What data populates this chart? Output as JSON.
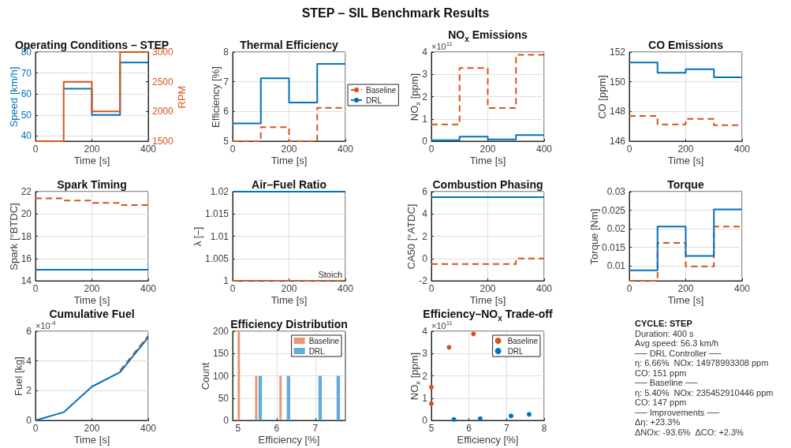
{
  "chart_data": [
    {
      "type": "other",
      "title": "STEP – SIL Benchmark Results"
    },
    {
      "type": "step",
      "title": "Operating Conditions – STEP",
      "xlabel": "Time [s]",
      "ylabel": "Speed [km/h]",
      "y2label": "RPM",
      "x": [
        0,
        100,
        200,
        300,
        400
      ],
      "series": [
        {
          "color": "#0072bd",
          "values": [
            null,
            62.5,
            50,
            75,
            75
          ]
        },
        {
          "color": "#d95319",
          "axis": "y2",
          "values": [
            1500,
            2500,
            2000,
            3000,
            3000
          ]
        }
      ],
      "xlim": [
        0,
        400
      ],
      "xticks": [
        0,
        200,
        400
      ],
      "ylim": [
        37.5,
        80
      ],
      "yticks": [
        40,
        50,
        60,
        70,
        80
      ],
      "y2lim": [
        1500,
        3000
      ],
      "y2ticks": [
        1500,
        2000,
        2500,
        3000
      ],
      "grid": true
    },
    {
      "type": "step",
      "title": "Thermal Efficiency",
      "xlabel": "Time [s]",
      "ylabel": "Efficiency [%]",
      "x": [
        0,
        100,
        200,
        300,
        400
      ],
      "series": [
        {
          "name": "Baseline",
          "color": "#d95319",
          "line_style": "dashed",
          "values": [
            5,
            5.47,
            5,
            6.12,
            6.12
          ]
        },
        {
          "name": "DRL",
          "color": "#0072bd",
          "values": [
            5.6,
            7.12,
            6.3,
            7.6,
            7.6
          ]
        }
      ],
      "xlim": [
        0,
        400
      ],
      "xticks": [
        0,
        200,
        400
      ],
      "ylim": [
        5,
        8
      ],
      "yticks": [
        5,
        6,
        7,
        8
      ],
      "grid": true,
      "legend": "right"
    },
    {
      "type": "step",
      "title": "NO$_{x}$ Emissions",
      "xlabel": "Time [s]",
      "ylabel": "NO$_{x}$ [ppm]",
      "annotations": [
        "×10$^{11}$"
      ],
      "x": [
        0,
        100,
        200,
        300,
        400
      ],
      "series": [
        {
          "color": "#d95319",
          "line_style": "dashed",
          "values": [
            0.75,
            3.28,
            1.49,
            3.88,
            3.88
          ]
        },
        {
          "color": "#0072bd",
          "values": [
            0.04,
            0.2,
            0.08,
            0.27,
            0.27
          ]
        }
      ],
      "xlim": [
        0,
        400
      ],
      "xticks": [
        0,
        200,
        400
      ],
      "ylim": [
        0,
        4
      ],
      "yticks": [
        0,
        1,
        2,
        3,
        4
      ],
      "grid": true
    },
    {
      "type": "step",
      "title": "CO Emissions",
      "xlabel": "Time [s]",
      "ylabel": "CO [ppm]",
      "x": [
        0,
        100,
        200,
        300,
        400
      ],
      "series": [
        {
          "color": "#d95319",
          "line_style": "dashed",
          "values": [
            147.7,
            147.13,
            147.5,
            147.07,
            147.07
          ]
        },
        {
          "color": "#0072bd",
          "values": [
            151.3,
            150.6,
            150.84,
            150.3,
            150.3
          ]
        }
      ],
      "xlim": [
        0,
        400
      ],
      "xticks": [
        0,
        200,
        400
      ],
      "ylim": [
        146,
        152
      ],
      "yticks": [
        146,
        148,
        150,
        152
      ],
      "grid": true
    },
    {
      "type": "step",
      "title": "Spark Timing",
      "xlabel": "Time [s]",
      "ylabel": "Spark [°BTDC]",
      "x": [
        0,
        100,
        200,
        300,
        400
      ],
      "series": [
        {
          "color": "#d95319",
          "line_style": "dashed",
          "values": [
            21.4,
            21.2,
            21,
            20.8,
            20.8
          ]
        },
        {
          "color": "#0072bd",
          "values": [
            15,
            15,
            15,
            15,
            15
          ]
        }
      ],
      "xlim": [
        0,
        400
      ],
      "xticks": [
        0,
        200,
        400
      ],
      "ylim": [
        14,
        22
      ],
      "yticks": [
        14,
        16,
        18,
        20,
        22
      ],
      "grid": true
    },
    {
      "type": "step",
      "title": "Air–Fuel Ratio",
      "xlabel": "Time [s]",
      "ylabel": "λ [–]",
      "annotations": [
        {
          "text": "Stoich",
          "x": 400,
          "y": 1
        }
      ],
      "x": [
        0,
        100,
        200,
        300,
        400
      ],
      "series": [
        {
          "color": "#d95319",
          "line_style": "dashed",
          "values": [
            1,
            1,
            1,
            1,
            1
          ]
        },
        {
          "color": "#0072bd",
          "values": [
            1.02,
            1.02,
            1.02,
            1.02,
            1.02
          ]
        }
      ],
      "xlim": [
        0,
        400
      ],
      "xticks": [
        0,
        200,
        400
      ],
      "ylim": [
        1,
        1.02
      ],
      "yticks": [
        1,
        1.005,
        1.01,
        1.015,
        1.02
      ],
      "grid": true
    },
    {
      "type": "step",
      "title": "Combustion Phasing",
      "xlabel": "Time [s]",
      "ylabel": "CA50 [°ATDC]",
      "x": [
        0,
        100,
        200,
        300,
        400
      ],
      "series": [
        {
          "color": "#d95319",
          "line_style": "dashed",
          "values": [
            -0.5,
            -0.5,
            -0.5,
            0,
            0
          ]
        },
        {
          "color": "#0072bd",
          "values": [
            5.5,
            5.5,
            5.5,
            5.5,
            5.5
          ]
        }
      ],
      "xlim": [
        0,
        400
      ],
      "xticks": [
        0,
        200,
        400
      ],
      "ylim": [
        -2,
        6
      ],
      "yticks": [
        -2,
        0,
        2,
        4,
        6
      ],
      "grid": true
    },
    {
      "type": "step",
      "title": "Torque",
      "xlabel": "Time [s]",
      "ylabel": "Torque [Nm]",
      "x": [
        0,
        100,
        200,
        300,
        400
      ],
      "series": [
        {
          "color": "#d95319",
          "line_style": "dashed",
          "values": [
            0.006,
            0.0162,
            0.0099,
            0.0206,
            0.0206
          ]
        },
        {
          "color": "#0072bd",
          "values": [
            0.0088,
            0.0206,
            0.0127,
            0.0252,
            0.0252
          ]
        }
      ],
      "xlim": [
        0,
        400
      ],
      "xticks": [
        0,
        200,
        400
      ],
      "ylim": [
        0.006,
        0.03
      ],
      "yticks": [
        0.01,
        0.015,
        0.02,
        0.025,
        0.03
      ],
      "grid": true
    },
    {
      "type": "line",
      "title": "Cumulative Fuel",
      "xlabel": "Time [s]",
      "ylabel": "Fuel [kg]",
      "annotations": [
        "×10$^{-4}$"
      ],
      "x": [
        0,
        100,
        200,
        300,
        400
      ],
      "series": [
        {
          "color": "#d95319",
          "line_style": "dashed",
          "values": [
            null,
            null,
            null,
            3.35,
            5.7
          ]
        },
        {
          "color": "#0072bd",
          "values": [
            0,
            0.55,
            2.27,
            3.25,
            5.6
          ]
        }
      ],
      "xlim": [
        0,
        400
      ],
      "xticks": [
        0,
        200,
        400
      ],
      "ylim": [
        0,
        6
      ],
      "yticks": [
        0,
        2,
        4,
        6
      ],
      "grid": true
    },
    {
      "type": "histogram",
      "title": "Efficiency Distribution",
      "xlabel": "Efficiency [%]",
      "ylabel": "Count",
      "bins": [
        4.99,
        5.05,
        5.44,
        5.5,
        5.53,
        5.62,
        6.07,
        6.13,
        6.26,
        6.35,
        7.08,
        7.17,
        7.55,
        7.64
      ],
      "series": [
        {
          "name": "Baseline",
          "color": "#e89875",
          "values": [
            200,
            0,
            100,
            0,
            0,
            0,
            100,
            0,
            0,
            0,
            0,
            0,
            0
          ]
        },
        {
          "name": "DRL",
          "color": "#66aad7",
          "values": [
            0,
            0,
            0,
            0,
            100,
            0,
            0,
            0,
            100,
            0,
            100,
            0,
            100
          ]
        }
      ],
      "xlim": [
        4.86,
        7.78
      ],
      "xticks": [
        5,
        6,
        7
      ],
      "ylim": [
        0,
        200
      ],
      "yticks": [
        0,
        50,
        100,
        150,
        200
      ],
      "grid": true,
      "legend": "top right"
    },
    {
      "type": "scatter",
      "title": "Efficiency–NO$_{x}$ Trade-off",
      "xlabel": "Efficiency [%]",
      "ylabel": "NO$_{x}$ [ppm]",
      "annotations": [
        "×10$^{11}$"
      ],
      "series": [
        {
          "name": "Baseline",
          "color": "#d95319",
          "x": [
            5,
            5.47,
            5,
            6.12
          ],
          "values": [
            0.75,
            3.28,
            1.49,
            3.88
          ]
        },
        {
          "name": "DRL",
          "color": "#0072bd",
          "x": [
            5.6,
            7.12,
            6.3,
            7.6
          ],
          "values": [
            0.04,
            0.2,
            0.08,
            0.27
          ]
        }
      ],
      "xlim": [
        5,
        8
      ],
      "xticks": [
        5,
        6,
        7,
        8
      ],
      "ylim": [
        0,
        4
      ],
      "yticks": [
        0,
        1,
        2,
        3,
        4
      ],
      "grid": true,
      "legend": "top right",
      "marker": "circle"
    },
    {
      "type": "other",
      "title": "CYCLE: STEP",
      "annotations": [
        "Duration: 400 s",
        "Avg speed: 56.3 km/h",
        "── DRL Controller ──",
        "η: 6.66%  NOx: 14978993308 ppm",
        "CO: 151 ppm",
        "── Baseline ──",
        "η: 5.40%  NOx: 235452910446 ppm",
        "CO: 147 ppm",
        "── Improvements ──",
        "Δη: +23.3%",
        "ΔNOx: -93.6%  ΔCO: +2.3%"
      ]
    }
  ]
}
